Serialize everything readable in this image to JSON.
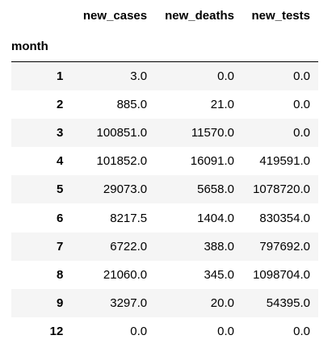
{
  "table": {
    "columns": [
      "new_cases",
      "new_deaths",
      "new_tests"
    ],
    "index_name": "month",
    "rows": [
      {
        "index": "1",
        "values": [
          "3.0",
          "0.0",
          "0.0"
        ]
      },
      {
        "index": "2",
        "values": [
          "885.0",
          "21.0",
          "0.0"
        ]
      },
      {
        "index": "3",
        "values": [
          "100851.0",
          "11570.0",
          "0.0"
        ]
      },
      {
        "index": "4",
        "values": [
          "101852.0",
          "16091.0",
          "419591.0"
        ]
      },
      {
        "index": "5",
        "values": [
          "29073.0",
          "5658.0",
          "1078720.0"
        ]
      },
      {
        "index": "6",
        "values": [
          "8217.5",
          "1404.0",
          "830354.0"
        ]
      },
      {
        "index": "7",
        "values": [
          "6722.0",
          "388.0",
          "797692.0"
        ]
      },
      {
        "index": "8",
        "values": [
          "21060.0",
          "345.0",
          "1098704.0"
        ]
      },
      {
        "index": "9",
        "values": [
          "3297.0",
          "20.0",
          "54395.0"
        ]
      },
      {
        "index": "12",
        "values": [
          "0.0",
          "0.0",
          "0.0"
        ]
      }
    ]
  }
}
